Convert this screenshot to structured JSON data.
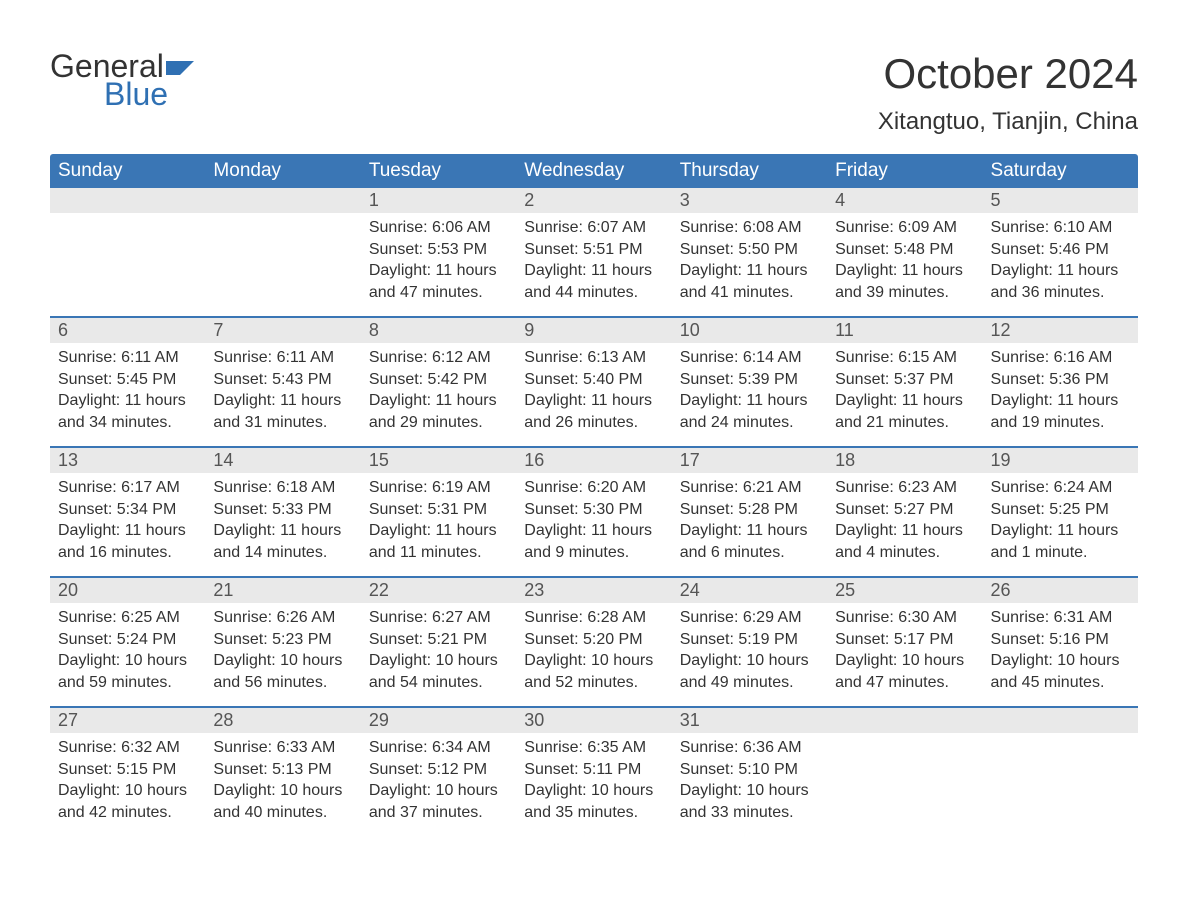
{
  "brand": {
    "word1": "General",
    "word2": "Blue"
  },
  "title": "October 2024",
  "location": "Xitangtuo, Tianjin, China",
  "colors": {
    "header_bg": "#3a76b5",
    "header_text": "#ffffff",
    "daynum_bg": "#e9e9e9",
    "body_text": "#333333",
    "brand_blue": "#2f70b3",
    "row_border": "#3a76b5",
    "page_bg": "#ffffff"
  },
  "day_labels": [
    "Sunday",
    "Monday",
    "Tuesday",
    "Wednesday",
    "Thursday",
    "Friday",
    "Saturday"
  ],
  "weeks": [
    [
      null,
      null,
      {
        "n": "1",
        "sunrise": "6:06 AM",
        "sunset": "5:53 PM",
        "daylight": "11 hours and 47 minutes."
      },
      {
        "n": "2",
        "sunrise": "6:07 AM",
        "sunset": "5:51 PM",
        "daylight": "11 hours and 44 minutes."
      },
      {
        "n": "3",
        "sunrise": "6:08 AM",
        "sunset": "5:50 PM",
        "daylight": "11 hours and 41 minutes."
      },
      {
        "n": "4",
        "sunrise": "6:09 AM",
        "sunset": "5:48 PM",
        "daylight": "11 hours and 39 minutes."
      },
      {
        "n": "5",
        "sunrise": "6:10 AM",
        "sunset": "5:46 PM",
        "daylight": "11 hours and 36 minutes."
      }
    ],
    [
      {
        "n": "6",
        "sunrise": "6:11 AM",
        "sunset": "5:45 PM",
        "daylight": "11 hours and 34 minutes."
      },
      {
        "n": "7",
        "sunrise": "6:11 AM",
        "sunset": "5:43 PM",
        "daylight": "11 hours and 31 minutes."
      },
      {
        "n": "8",
        "sunrise": "6:12 AM",
        "sunset": "5:42 PM",
        "daylight": "11 hours and 29 minutes."
      },
      {
        "n": "9",
        "sunrise": "6:13 AM",
        "sunset": "5:40 PM",
        "daylight": "11 hours and 26 minutes."
      },
      {
        "n": "10",
        "sunrise": "6:14 AM",
        "sunset": "5:39 PM",
        "daylight": "11 hours and 24 minutes."
      },
      {
        "n": "11",
        "sunrise": "6:15 AM",
        "sunset": "5:37 PM",
        "daylight": "11 hours and 21 minutes."
      },
      {
        "n": "12",
        "sunrise": "6:16 AM",
        "sunset": "5:36 PM",
        "daylight": "11 hours and 19 minutes."
      }
    ],
    [
      {
        "n": "13",
        "sunrise": "6:17 AM",
        "sunset": "5:34 PM",
        "daylight": "11 hours and 16 minutes."
      },
      {
        "n": "14",
        "sunrise": "6:18 AM",
        "sunset": "5:33 PM",
        "daylight": "11 hours and 14 minutes."
      },
      {
        "n": "15",
        "sunrise": "6:19 AM",
        "sunset": "5:31 PM",
        "daylight": "11 hours and 11 minutes."
      },
      {
        "n": "16",
        "sunrise": "6:20 AM",
        "sunset": "5:30 PM",
        "daylight": "11 hours and 9 minutes."
      },
      {
        "n": "17",
        "sunrise": "6:21 AM",
        "sunset": "5:28 PM",
        "daylight": "11 hours and 6 minutes."
      },
      {
        "n": "18",
        "sunrise": "6:23 AM",
        "sunset": "5:27 PM",
        "daylight": "11 hours and 4 minutes."
      },
      {
        "n": "19",
        "sunrise": "6:24 AM",
        "sunset": "5:25 PM",
        "daylight": "11 hours and 1 minute."
      }
    ],
    [
      {
        "n": "20",
        "sunrise": "6:25 AM",
        "sunset": "5:24 PM",
        "daylight": "10 hours and 59 minutes."
      },
      {
        "n": "21",
        "sunrise": "6:26 AM",
        "sunset": "5:23 PM",
        "daylight": "10 hours and 56 minutes."
      },
      {
        "n": "22",
        "sunrise": "6:27 AM",
        "sunset": "5:21 PM",
        "daylight": "10 hours and 54 minutes."
      },
      {
        "n": "23",
        "sunrise": "6:28 AM",
        "sunset": "5:20 PM",
        "daylight": "10 hours and 52 minutes."
      },
      {
        "n": "24",
        "sunrise": "6:29 AM",
        "sunset": "5:19 PM",
        "daylight": "10 hours and 49 minutes."
      },
      {
        "n": "25",
        "sunrise": "6:30 AM",
        "sunset": "5:17 PM",
        "daylight": "10 hours and 47 minutes."
      },
      {
        "n": "26",
        "sunrise": "6:31 AM",
        "sunset": "5:16 PM",
        "daylight": "10 hours and 45 minutes."
      }
    ],
    [
      {
        "n": "27",
        "sunrise": "6:32 AM",
        "sunset": "5:15 PM",
        "daylight": "10 hours and 42 minutes."
      },
      {
        "n": "28",
        "sunrise": "6:33 AM",
        "sunset": "5:13 PM",
        "daylight": "10 hours and 40 minutes."
      },
      {
        "n": "29",
        "sunrise": "6:34 AM",
        "sunset": "5:12 PM",
        "daylight": "10 hours and 37 minutes."
      },
      {
        "n": "30",
        "sunrise": "6:35 AM",
        "sunset": "5:11 PM",
        "daylight": "10 hours and 35 minutes."
      },
      {
        "n": "31",
        "sunrise": "6:36 AM",
        "sunset": "5:10 PM",
        "daylight": "10 hours and 33 minutes."
      },
      null,
      null
    ]
  ],
  "labels": {
    "sunrise": "Sunrise: ",
    "sunset": "Sunset: ",
    "daylight": "Daylight: "
  }
}
